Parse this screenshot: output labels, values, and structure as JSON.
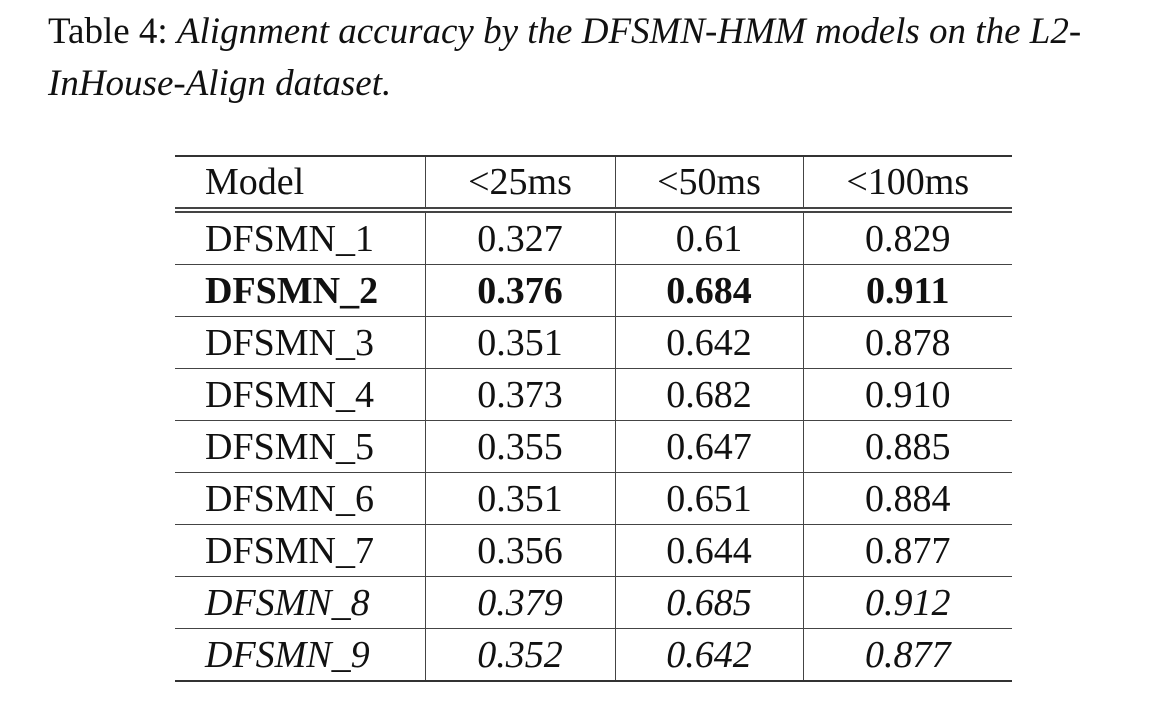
{
  "caption": {
    "label": "Table 4:",
    "text": "Alignment accuracy by the DFSMN-HMM models on the L2-InHouse-Align dataset."
  },
  "table": {
    "header": [
      "Model",
      "<25ms",
      "<50ms",
      "<100ms"
    ],
    "rows": [
      [
        "DFSMN_1",
        "0.327",
        "0.61",
        "0.829"
      ],
      [
        "DFSMN_2",
        "0.376",
        "0.684",
        "0.911"
      ],
      [
        "DFSMN_3",
        "0.351",
        "0.642",
        "0.878"
      ],
      [
        "DFSMN_4",
        "0.373",
        "0.682",
        "0.910"
      ],
      [
        "DFSMN_5",
        "0.355",
        "0.647",
        "0.885"
      ],
      [
        "DFSMN_6",
        "0.351",
        "0.651",
        "0.884"
      ],
      [
        "DFSMN_7",
        "0.356",
        "0.644",
        "0.877"
      ],
      [
        "DFSMN_8",
        "0.379",
        "0.685",
        "0.912"
      ],
      [
        "DFSMN_9",
        "0.352",
        "0.642",
        "0.877"
      ]
    ],
    "row_styles": [
      "normal",
      "bold",
      "normal",
      "normal",
      "normal",
      "normal",
      "normal",
      "italic",
      "italic"
    ]
  }
}
